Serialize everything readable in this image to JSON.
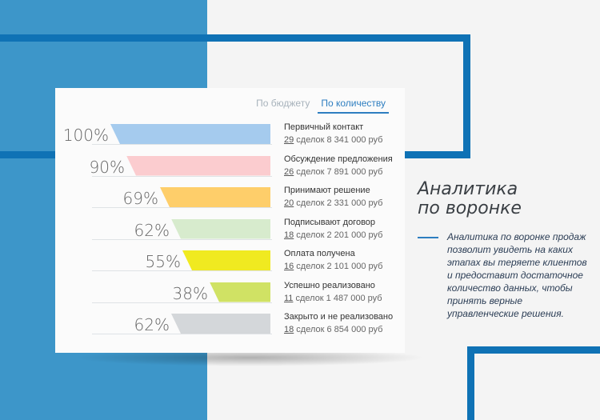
{
  "tabs": [
    {
      "label": "По бюджету",
      "active": false
    },
    {
      "label": "По количеству",
      "active": true
    }
  ],
  "stages": [
    {
      "percent": "100%",
      "name": "Первичный контакт",
      "count": "29",
      "deals_text": " сделок 8 341 000 руб",
      "color": "#a5cbee",
      "fill": 1.0
    },
    {
      "percent": "90%",
      "name": "Обсуждение предложения",
      "count": "26",
      "deals_text": " сделок 7 891 000 руб",
      "color": "#fbcccf",
      "fill": 0.9
    },
    {
      "percent": "69%",
      "name": "Принимают решение",
      "count": "20",
      "deals_text": " сделок 2 331 000 руб",
      "color": "#fece6a",
      "fill": 0.69
    },
    {
      "percent": "62%",
      "name": "Подписывают договор",
      "count": "18",
      "deals_text": " сделок 2 201 000 руб",
      "color": "#d7ebcd",
      "fill": 0.62
    },
    {
      "percent": "55%",
      "name": "Оплата получена",
      "count": "16",
      "deals_text": " сделок 2 101 000 руб",
      "color": "#f0ea20",
      "fill": 0.55
    },
    {
      "percent": "38%",
      "name": "Успешно реализовано",
      "count": "11",
      "deals_text": " сделок 1 487 000 руб",
      "color": "#d0e264",
      "fill": 0.38
    },
    {
      "percent": "62%",
      "name": "Закрыто и не реализовано",
      "count": "18",
      "deals_text": " сделок 6 854 000 руб",
      "color": "#d4d7da",
      "fill": 0.62
    }
  ],
  "title_line1": "Аналитика",
  "title_line2": "по воронке",
  "description": "Аналитика по воронке продаж позволит увидеть на каких этапах вы теряете клиентов и предоставит достаточное количество данных, чтобы принять верные управленческие решения."
}
